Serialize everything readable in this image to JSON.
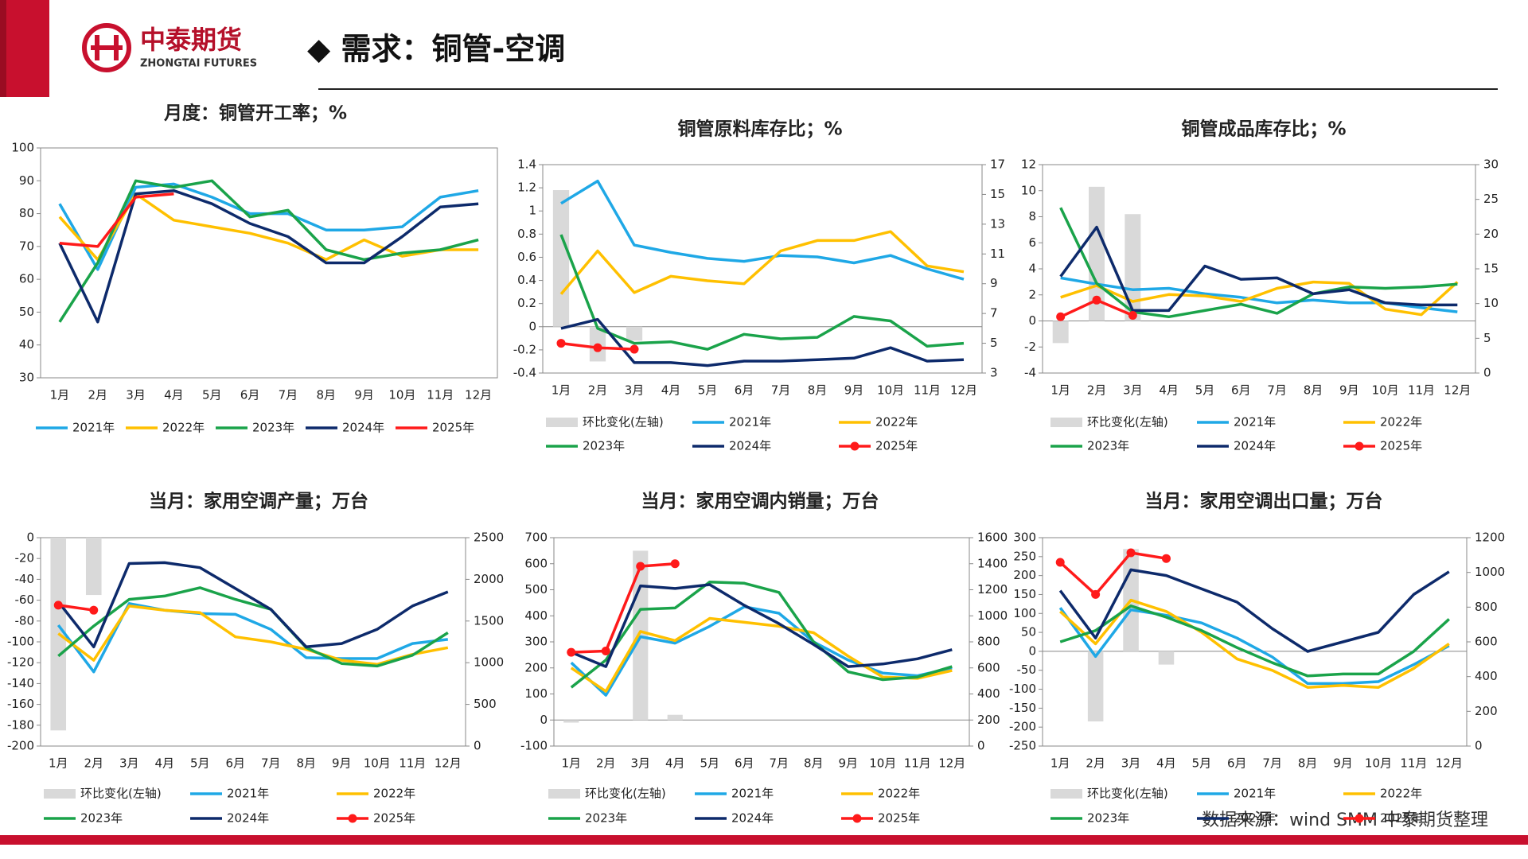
{
  "header": {
    "logo_cn": "中泰期货",
    "logo_en": "ZHONGTAI FUTURES",
    "title": "◆ 需求：铜管-空调"
  },
  "footer": {
    "source": "数据来源：wind SMM 中泰期货整理"
  },
  "chart_data": [
    {
      "type": "line",
      "title": "月度：铜管开工率；%",
      "legend": "bottom",
      "categories": [
        "1月",
        "2月",
        "3月",
        "4月",
        "5月",
        "6月",
        "7月",
        "8月",
        "9月",
        "10月",
        "11月",
        "12月"
      ],
      "ylim": [
        30,
        100
      ],
      "yticks": [
        30,
        40,
        50,
        60,
        70,
        80,
        90,
        100
      ],
      "series": [
        {
          "name": "2021年",
          "color": "#1fa8e6",
          "values": [
            83,
            63,
            88,
            89,
            85,
            80,
            80,
            75,
            75,
            76,
            85,
            87
          ]
        },
        {
          "name": "2022年",
          "color": "#ffc000",
          "values": [
            79,
            66,
            86,
            78,
            76,
            74,
            71,
            66,
            72,
            67,
            69,
            69
          ]
        },
        {
          "name": "2023年",
          "color": "#1aa34a",
          "values": [
            47,
            65,
            90,
            88,
            90,
            79,
            81,
            69,
            66,
            68,
            69,
            72
          ]
        },
        {
          "name": "2024年",
          "color": "#0d2a6b",
          "values": [
            71,
            47,
            86,
            87,
            83,
            77,
            73,
            65,
            65,
            73,
            82,
            83
          ]
        },
        {
          "name": "2025年",
          "color": "#ff1a1a",
          "values": [
            71,
            70,
            85,
            86,
            null,
            null,
            null,
            null,
            null,
            null,
            null,
            null
          ]
        }
      ]
    },
    {
      "type": "line",
      "title": "铜管原料库存比；%",
      "legend": "bottom",
      "categories": [
        "1月",
        "2月",
        "3月",
        "4月",
        "5月",
        "6月",
        "7月",
        "8月",
        "9月",
        "10月",
        "11月",
        "12月"
      ],
      "ylim": [
        -0.4,
        1.4
      ],
      "yticks": [
        -0.4,
        -0.2,
        0,
        0.2,
        0.4,
        0.6,
        0.8,
        1,
        1.2,
        1.4
      ],
      "y2lim": [
        3,
        17
      ],
      "y2ticks": [
        3,
        5,
        7,
        9,
        11,
        13,
        15,
        17
      ],
      "series": [
        {
          "name": "环比变化(左轴)",
          "type": "bar",
          "color": "#d9d9d9",
          "values": [
            1.18,
            -0.3,
            -0.12,
            null,
            null,
            null,
            null,
            null,
            null,
            null,
            null,
            null
          ]
        },
        {
          "name": "2021年",
          "color": "#1fa8e6",
          "axis": "y2",
          "values": [
            14.4,
            15.9,
            11.6,
            11.1,
            10.7,
            10.5,
            10.9,
            10.8,
            10.4,
            10.9,
            10.0,
            9.3
          ]
        },
        {
          "name": "2022年",
          "color": "#ffc000",
          "axis": "y2",
          "values": [
            8.3,
            11.2,
            8.4,
            9.5,
            9.2,
            9.0,
            11.2,
            11.9,
            11.9,
            12.5,
            10.2,
            9.8
          ]
        },
        {
          "name": "2023年",
          "color": "#1aa34a",
          "axis": "y2",
          "values": [
            12.3,
            6.0,
            5.0,
            5.1,
            4.6,
            5.6,
            5.3,
            5.4,
            6.8,
            6.5,
            4.8,
            5.0
          ]
        },
        {
          "name": "2024年",
          "color": "#0d2a6b",
          "axis": "y2",
          "values": [
            6.0,
            6.6,
            3.7,
            3.7,
            3.5,
            3.8,
            3.8,
            3.9,
            4.0,
            4.7,
            3.8,
            3.9
          ]
        },
        {
          "name": "2025年",
          "color": "#ff1a1a",
          "axis": "y2",
          "marker": true,
          "values": [
            5.0,
            4.7,
            4.6,
            null,
            null,
            null,
            null,
            null,
            null,
            null,
            null,
            null
          ]
        }
      ]
    },
    {
      "type": "line",
      "title": "铜管成品库存比；%",
      "legend": "bottom",
      "categories": [
        "1月",
        "2月",
        "3月",
        "4月",
        "5月",
        "6月",
        "7月",
        "8月",
        "9月",
        "10月",
        "11月",
        "12月"
      ],
      "ylim": [
        -4,
        12
      ],
      "yticks": [
        -4,
        -2,
        0,
        2,
        4,
        6,
        8,
        10,
        12
      ],
      "y2lim": [
        0,
        30
      ],
      "y2ticks": [
        0,
        5,
        10,
        15,
        20,
        25,
        30
      ],
      "series": [
        {
          "name": "环比变化(左轴)",
          "type": "bar",
          "color": "#d9d9d9",
          "values": [
            -1.7,
            10.3,
            8.2,
            null,
            null,
            null,
            null,
            null,
            null,
            null,
            null,
            null
          ]
        },
        {
          "name": "2021年",
          "color": "#1fa8e6",
          "axis": "y2",
          "values": [
            13.7,
            12.8,
            12.0,
            12.2,
            11.4,
            10.9,
            10.1,
            10.5,
            10.1,
            10.1,
            9.4,
            8.8
          ]
        },
        {
          "name": "2022年",
          "color": "#ffc000",
          "axis": "y2",
          "values": [
            10.9,
            12.6,
            10.3,
            11.3,
            11.1,
            10.3,
            12.2,
            13.1,
            12.9,
            9.2,
            8.4,
            13.1
          ]
        },
        {
          "name": "2023年",
          "color": "#1aa34a",
          "axis": "y2",
          "values": [
            23.8,
            12.9,
            8.8,
            8.1,
            9.0,
            9.9,
            8.6,
            11.4,
            12.4,
            12.2,
            12.4,
            12.8
          ]
        },
        {
          "name": "2024年",
          "color": "#0d2a6b",
          "axis": "y2",
          "values": [
            13.9,
            21.0,
            9.0,
            9.0,
            15.4,
            13.5,
            13.7,
            11.4,
            12.0,
            10.1,
            9.8,
            9.8
          ]
        },
        {
          "name": "2025年",
          "color": "#ff1a1a",
          "axis": "y2",
          "marker": true,
          "values": [
            8.1,
            10.5,
            8.3,
            null,
            null,
            null,
            null,
            null,
            null,
            null,
            null,
            null
          ]
        }
      ]
    },
    {
      "type": "line",
      "title": "当月：家用空调产量；万台",
      "legend": "bottom",
      "categories": [
        "1月",
        "2月",
        "3月",
        "4月",
        "5月",
        "6月",
        "7月",
        "8月",
        "9月",
        "10月",
        "11月",
        "12月"
      ],
      "ylim": [
        -200,
        0
      ],
      "yticks": [
        -200,
        -180,
        -160,
        -140,
        -120,
        -100,
        -80,
        -60,
        -40,
        -20,
        0
      ],
      "y2lim": [
        0,
        2500
      ],
      "y2ticks": [
        0,
        500,
        1000,
        1500,
        2000,
        2500
      ],
      "series": [
        {
          "name": "环比变化(左轴)",
          "type": "bar",
          "color": "#d9d9d9",
          "values": [
            -185,
            -55,
            null,
            null,
            null,
            null,
            null,
            null,
            null,
            null,
            null,
            null
          ]
        },
        {
          "name": "2021年",
          "color": "#1fa8e6",
          "axis": "y2",
          "values": [
            1450,
            890,
            1710,
            1630,
            1590,
            1580,
            1400,
            1060,
            1050,
            1050,
            1230,
            1280
          ]
        },
        {
          "name": "2022年",
          "color": "#ffc000",
          "axis": "y2",
          "values": [
            1350,
            1030,
            1680,
            1630,
            1600,
            1310,
            1250,
            1160,
            1030,
            980,
            1100,
            1180
          ]
        },
        {
          "name": "2023年",
          "color": "#1aa34a",
          "axis": "y2",
          "values": [
            1080,
            1440,
            1760,
            1800,
            1900,
            1760,
            1640,
            1180,
            990,
            960,
            1090,
            1360
          ]
        },
        {
          "name": "2024年",
          "color": "#0d2a6b",
          "axis": "y2",
          "values": [
            1730,
            1190,
            2190,
            2200,
            2140,
            1890,
            1640,
            1190,
            1230,
            1400,
            1680,
            1850
          ]
        },
        {
          "name": "2025年",
          "color": "#ff1a1a",
          "axis": "y2",
          "marker": true,
          "values": [
            1690,
            1630,
            null,
            null,
            null,
            null,
            null,
            null,
            null,
            null,
            null,
            null
          ]
        }
      ]
    },
    {
      "type": "line",
      "title": "当月：家用空调内销量；万台",
      "legend": "bottom",
      "categories": [
        "1月",
        "2月",
        "3月",
        "4月",
        "5月",
        "6月",
        "7月",
        "8月",
        "9月",
        "10月",
        "11月",
        "12月"
      ],
      "ylim": [
        -100,
        700
      ],
      "yticks": [
        -100,
        0,
        100,
        200,
        300,
        400,
        500,
        600,
        700
      ],
      "y2lim": [
        0,
        1600
      ],
      "y2ticks": [
        0,
        200,
        400,
        600,
        800,
        1000,
        1200,
        1400,
        1600
      ],
      "series": [
        {
          "name": "环比变化(左轴)",
          "type": "bar",
          "color": "#d9d9d9",
          "values": [
            -10,
            null,
            650,
            20,
            null,
            null,
            null,
            null,
            null,
            null,
            null,
            null
          ]
        },
        {
          "name": "2021年",
          "color": "#1fa8e6",
          "axis": "y2",
          "values": [
            640,
            390,
            840,
            790,
            920,
            1070,
            1020,
            800,
            660,
            560,
            540,
            600
          ]
        },
        {
          "name": "2022年",
          "color": "#ffc000",
          "axis": "y2",
          "values": [
            600,
            420,
            880,
            810,
            980,
            950,
            920,
            870,
            690,
            530,
            520,
            580
          ]
        },
        {
          "name": "2023年",
          "color": "#1aa34a",
          "axis": "y2",
          "values": [
            450,
            660,
            1050,
            1060,
            1260,
            1250,
            1180,
            800,
            570,
            510,
            530,
            610
          ]
        },
        {
          "name": "2024年",
          "color": "#0d2a6b",
          "axis": "y2",
          "values": [
            720,
            610,
            1230,
            1210,
            1240,
            1080,
            940,
            780,
            610,
            630,
            670,
            740
          ]
        },
        {
          "name": "2025年",
          "color": "#ff1a1a",
          "axis": "y2",
          "marker": true,
          "values": [
            720,
            730,
            1380,
            1400,
            null,
            null,
            null,
            null,
            null,
            null,
            null,
            null
          ]
        }
      ]
    },
    {
      "type": "line",
      "title": "当月：家用空调出口量；万台",
      "legend": "bottom",
      "categories": [
        "1月",
        "2月",
        "3月",
        "4月",
        "5月",
        "6月",
        "7月",
        "8月",
        "9月",
        "10月",
        "11月",
        "12月"
      ],
      "ylim": [
        -250,
        300
      ],
      "yticks": [
        -250,
        -200,
        -150,
        -100,
        -50,
        0,
        50,
        100,
        150,
        200,
        250,
        300
      ],
      "y2lim": [
        0,
        1200
      ],
      "y2ticks": [
        0,
        200,
        400,
        600,
        800,
        1000,
        1200
      ],
      "series": [
        {
          "name": "环比变化(左轴)",
          "type": "bar",
          "color": "#d9d9d9",
          "values": [
            null,
            -185,
            270,
            -35,
            null,
            null,
            null,
            null,
            null,
            null,
            null,
            null
          ]
        },
        {
          "name": "2021年",
          "color": "#1fa8e6",
          "axis": "y2",
          "values": [
            796,
            516,
            785,
            753,
            709,
            622,
            513,
            360,
            360,
            371,
            469,
            578
          ]
        },
        {
          "name": "2022年",
          "color": "#ffc000",
          "axis": "y2",
          "values": [
            775,
            589,
            840,
            775,
            655,
            502,
            436,
            338,
            349,
            338,
            447,
            589
          ]
        },
        {
          "name": "2023年",
          "color": "#1aa34a",
          "axis": "y2",
          "values": [
            600,
            665,
            807,
            742,
            665,
            567,
            480,
            404,
            415,
            415,
            545,
            731
          ]
        },
        {
          "name": "2024年",
          "color": "#0d2a6b",
          "axis": "y2",
          "values": [
            895,
            622,
            1015,
            982,
            905,
            829,
            676,
            545,
            600,
            655,
            873,
            1004
          ]
        },
        {
          "name": "2025年",
          "color": "#ff1a1a",
          "axis": "y2",
          "marker": true,
          "values": [
            1058,
            873,
            1113,
            1080,
            null,
            null,
            null,
            null,
            null,
            null,
            null,
            null
          ]
        }
      ]
    }
  ]
}
